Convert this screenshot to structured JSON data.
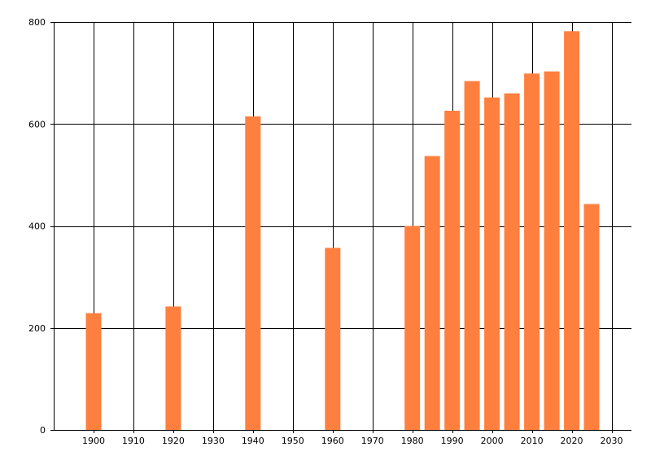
{
  "chart_data": {
    "type": "bar",
    "title": "",
    "xlabel": "",
    "ylabel": "",
    "x": [
      1900,
      1920,
      1940,
      1960,
      1980,
      1985,
      1990,
      1995,
      2000,
      2005,
      2010,
      2015,
      2020,
      2025
    ],
    "values": [
      229,
      242,
      615,
      357,
      400,
      537,
      626,
      684,
      652,
      660,
      699,
      703,
      782,
      443
    ],
    "xlim": [
      1890,
      2035
    ],
    "ylim": [
      0,
      800
    ],
    "x_ticks": [
      1900,
      1910,
      1920,
      1930,
      1940,
      1950,
      1960,
      1970,
      1980,
      1990,
      2000,
      2010,
      2020,
      2030
    ],
    "y_ticks": [
      0,
      200,
      400,
      600,
      800
    ],
    "grid": true,
    "legend": "none",
    "bar_color": "#ff7f3f",
    "grid_color": "#000000"
  }
}
